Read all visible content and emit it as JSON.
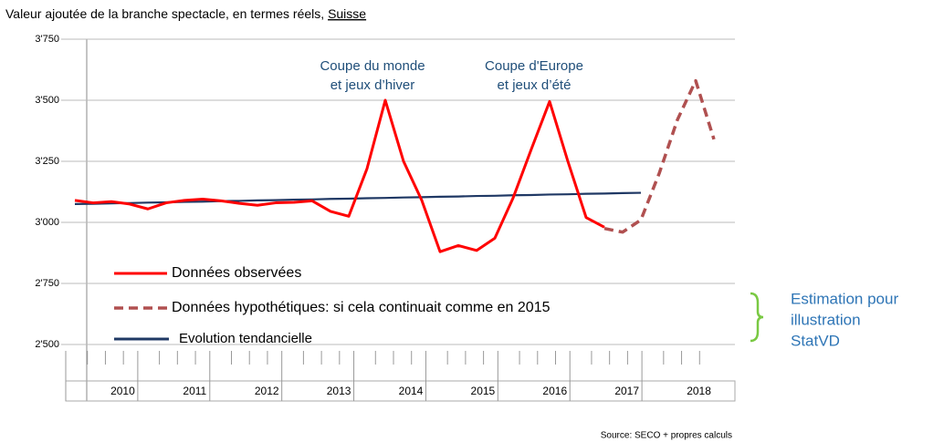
{
  "chart_data": {
    "type": "line",
    "title": [
      "Valeur ajoutée de la branche spectacle, en termes réels,",
      "Suisse"
    ],
    "year_labels": [
      "2010",
      "2011",
      "2012",
      "2013",
      "2014",
      "2015",
      "2016",
      "2017",
      "2018"
    ],
    "ylim": [
      2500,
      3750
    ],
    "yticks": [
      {
        "value": 2500,
        "label": "2'500"
      },
      {
        "value": 2750,
        "label": "2'750"
      },
      {
        "value": 3000,
        "label": "3'000"
      },
      {
        "value": 3250,
        "label": "3'250"
      },
      {
        "value": 3500,
        "label": "3'500"
      },
      {
        "value": 3750,
        "label": "3'750"
      }
    ],
    "series": [
      {
        "name": "Données observées",
        "color": "#ff0000",
        "dash": false,
        "values": [
          3090,
          3080,
          3085,
          3075,
          3055,
          3080,
          3090,
          3095,
          3088,
          3078,
          3070,
          3080,
          3082,
          3088,
          3045,
          3025,
          3220,
          3500,
          3250,
          3090,
          2880,
          2905,
          2885,
          2935,
          3100,
          3300,
          3495,
          3250,
          3020,
          2980,
          null,
          null,
          null,
          null,
          null,
          null
        ]
      },
      {
        "name": "Données hypothétiques: si cela continuait comme en 2015",
        "color": "#b05050",
        "dash": true,
        "values": [
          null,
          null,
          null,
          null,
          null,
          null,
          null,
          null,
          null,
          null,
          null,
          null,
          null,
          null,
          null,
          null,
          null,
          null,
          null,
          null,
          null,
          null,
          null,
          null,
          null,
          null,
          null,
          null,
          null,
          2975,
          2960,
          3010,
          3200,
          3420,
          3580,
          3340
        ]
      },
      {
        "name": "Evolution tendancielle",
        "color": "#1f3864",
        "dash": false,
        "values": [
          3075,
          3076,
          3078,
          3079,
          3081,
          3082,
          3084,
          3085,
          3087,
          3088,
          3090,
          3091,
          3093,
          3094,
          3096,
          3097,
          3099,
          3100,
          3102,
          3103,
          3105,
          3106,
          3108,
          3109,
          3111,
          3112,
          3114,
          3115,
          3117,
          3118,
          3120,
          3121,
          null,
          null,
          null,
          null
        ]
      }
    ],
    "annotations": [
      [
        "Coupe du monde",
        "et jeux d’hiver"
      ],
      [
        "Coupe d'Europe",
        "et jeux d’été"
      ]
    ],
    "side_note": [
      "Estimation pour",
      "illustration",
      "StatVD"
    ],
    "source": "Source: SECO + propres calculs"
  }
}
